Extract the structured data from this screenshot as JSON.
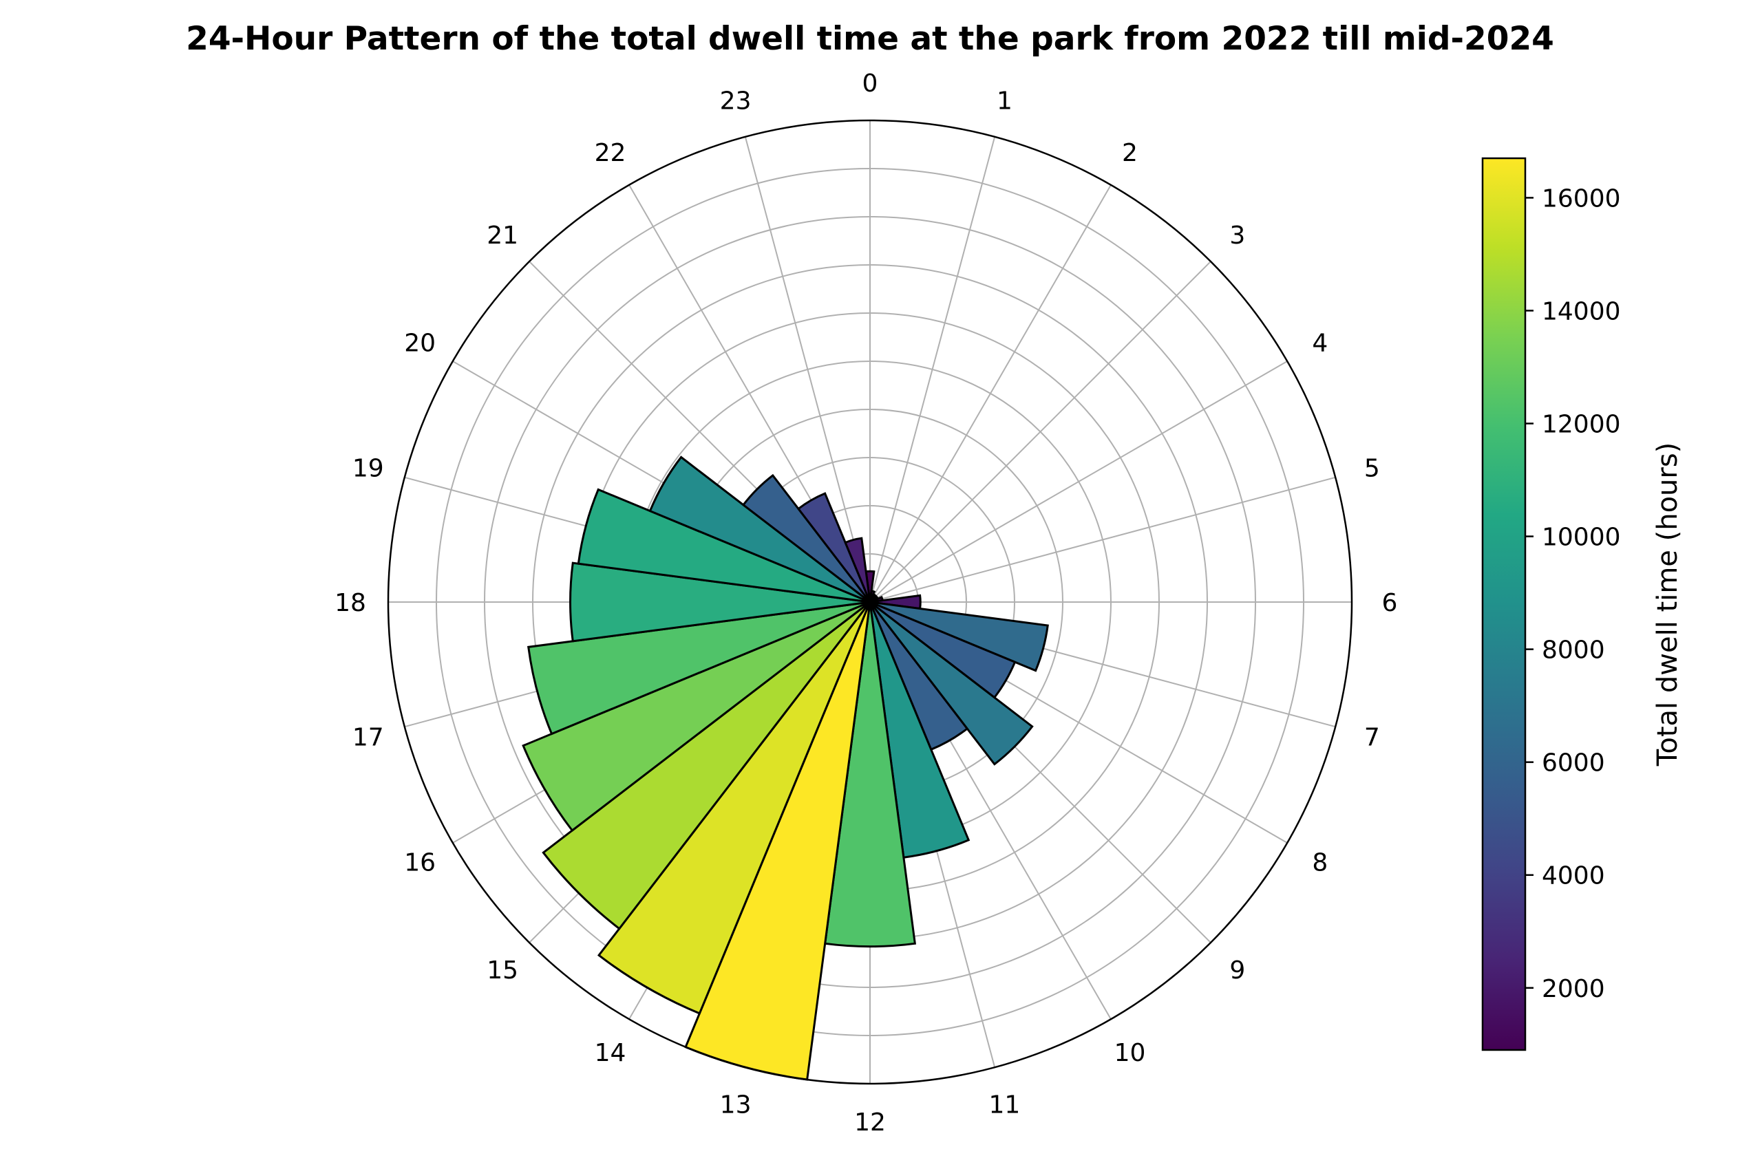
{
  "chart_data": {
    "type": "polar-bar",
    "title": "24-Hour Pattern of the total dwell time at the park from 2022 till mid-2024",
    "direction": "clockwise",
    "zero_location": "top",
    "categories": [
      "0",
      "1",
      "2",
      "3",
      "4",
      "5",
      "6",
      "7",
      "8",
      "9",
      "10",
      "11",
      "12",
      "13",
      "14",
      "15",
      "16",
      "17",
      "18",
      "19",
      "20",
      "21",
      "22",
      "23"
    ],
    "values": [
      1100,
      400,
      300,
      300,
      300,
      450,
      1800,
      6400,
      5600,
      7300,
      5700,
      9200,
      12300,
      17200,
      15900,
      14700,
      13400,
      12300,
      10700,
      10500,
      8500,
      5700,
      4200,
      2300
    ],
    "radial_range": [
      0,
      17200
    ],
    "radial_grid_rings": 10,
    "grid": true,
    "bar_edge_color": "#000000",
    "colormap": "viridis",
    "colorbar": {
      "label": "Total dwell time (hours)",
      "range": [
        900,
        16700
      ],
      "ticks": [
        "2000",
        "4000",
        "6000",
        "8000",
        "10000",
        "12000",
        "14000",
        "16000"
      ],
      "tick_values": [
        2000,
        4000,
        6000,
        8000,
        10000,
        12000,
        14000,
        16000
      ]
    }
  }
}
